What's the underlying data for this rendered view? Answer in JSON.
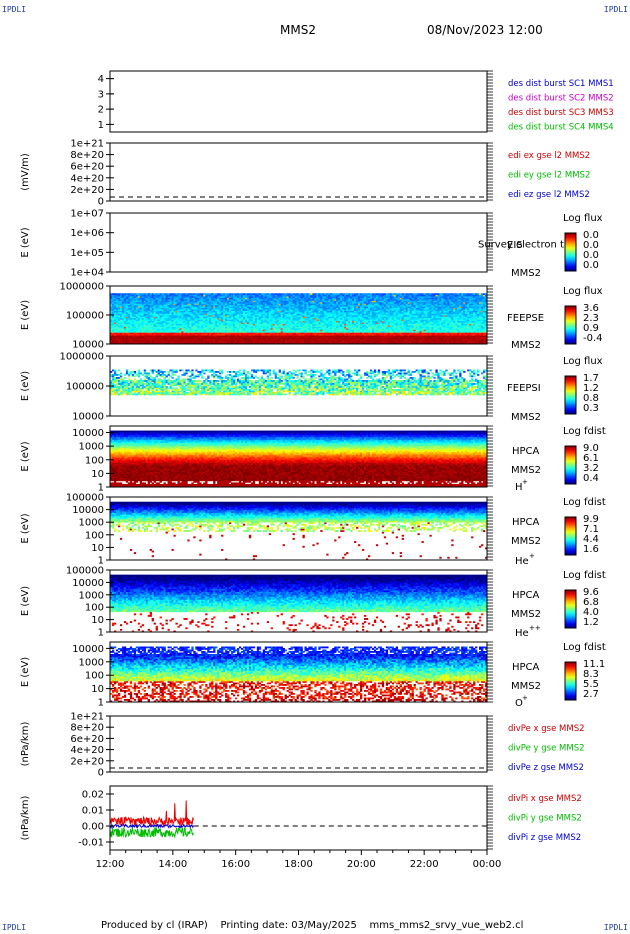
{
  "corner_tl": "IPDLI",
  "corner_tr": "IPDLI",
  "corner_bl": "IPDLI",
  "corner_br": "IPDLI",
  "header": {
    "spacecraft": "MMS2",
    "date": "08/Nov/2023 12:00"
  },
  "footer": "Produced by cl (IRAP)    Printing date: 03/May/2025    mms_mms2_srvy_vue_web2.cl",
  "chart_data": [
    {
      "type": "line",
      "panel": "burst",
      "yticks": [
        "1",
        "2",
        "3",
        "4"
      ],
      "ylim": [
        0.5,
        4.5
      ],
      "legend": [
        {
          "label": "des dist burst SC1 MMS1",
          "color": "#0000cc"
        },
        {
          "label": "des dist burst SC2 MMS2",
          "color": "#cc00cc"
        },
        {
          "label": "des dist burst SC3 MMS3",
          "color": "#cc0000"
        },
        {
          "label": "des dist burst SC4 MMS4",
          "color": "#00bb00"
        }
      ]
    },
    {
      "type": "line",
      "panel": "edi",
      "ylabel": "(mV/m)",
      "yticks": [
        "0",
        "2e+20",
        "4e+20",
        "6e+20",
        "8e+20",
        "1e+21"
      ],
      "ylim": [
        0,
        1e+21
      ],
      "legend": [
        {
          "label": "edi ex gse l2 MMS2",
          "color": "#cc0000"
        },
        {
          "label": "edi ey gse l2 MMS2",
          "color": "#00bb00"
        },
        {
          "label": "edi ez gse l2 MMS2",
          "color": "#0000cc"
        }
      ]
    },
    {
      "type": "heatmap",
      "panel": "eis",
      "ylabel": "E (eV)",
      "yticks": [
        "1e+04",
        "1e+05",
        "1e+06",
        "1e+07"
      ],
      "ylim": [
        10000.0,
        10000000.0
      ],
      "yscale": "log",
      "inst": [
        "EIS",
        "MMS2"
      ],
      "overlay": "Survey electron to",
      "cb_title": "Log flux",
      "cb_ticks": [
        "0.0",
        "0.0",
        "0.0",
        "0.0"
      ]
    },
    {
      "type": "heatmap",
      "panel": "feepse",
      "ylabel": "E (eV)",
      "yticks": [
        "10000",
        "100000",
        "1000000"
      ],
      "ylim": [
        10000,
        1000000
      ],
      "yscale": "log",
      "inst": [
        "FEEPSE",
        "MMS2"
      ],
      "cb_title": "Log flux",
      "cb_ticks": [
        "3.6",
        "2.3",
        "0.9",
        "-0.4"
      ]
    },
    {
      "type": "heatmap",
      "panel": "feepsi",
      "ylabel": "E (eV)",
      "yticks": [
        "10000",
        "100000",
        "1000000"
      ],
      "ylim": [
        10000,
        1000000
      ],
      "yscale": "log",
      "inst": [
        "FEEPSI",
        "MMS2"
      ],
      "cb_title": "Log flux",
      "cb_ticks": [
        "1.7",
        "1.2",
        "0.8",
        "0.3"
      ]
    },
    {
      "type": "heatmap",
      "panel": "hpca_h",
      "ylabel": "E (eV)",
      "yticks": [
        "1",
        "10",
        "100",
        "1000",
        "10000"
      ],
      "ylim": [
        1,
        30000
      ],
      "yscale": "log",
      "inst": [
        "HPCA",
        "MMS2"
      ],
      "species": "H",
      "charge": "+",
      "cb_title": "Log fdist",
      "cb_ticks": [
        "9.0",
        "6.1",
        "3.2",
        "0.4"
      ]
    },
    {
      "type": "heatmap",
      "panel": "hpca_he",
      "ylabel": "E (eV)",
      "yticks": [
        "1",
        "10",
        "100",
        "1000",
        "10000",
        "100000"
      ],
      "ylim": [
        1,
        100000
      ],
      "yscale": "log",
      "inst": [
        "HPCA",
        "MMS2"
      ],
      "species": "He",
      "charge": "+",
      "cb_title": "Log fdist",
      "cb_ticks": [
        "9.9",
        "7.1",
        "4.4",
        "1.6"
      ]
    },
    {
      "type": "heatmap",
      "panel": "hpca_hepp",
      "ylabel": "E (eV)",
      "yticks": [
        "1",
        "10",
        "100",
        "1000",
        "10000",
        "100000"
      ],
      "ylim": [
        1,
        100000
      ],
      "yscale": "log",
      "inst": [
        "HPCA",
        "MMS2"
      ],
      "species": "He",
      "charge": "++",
      "cb_title": "Log fdist",
      "cb_ticks": [
        "9.6",
        "6.8",
        "4.0",
        "1.2"
      ]
    },
    {
      "type": "heatmap",
      "panel": "hpca_o",
      "ylabel": "E (eV)",
      "yticks": [
        "1",
        "10",
        "100",
        "1000",
        "10000"
      ],
      "ylim": [
        1,
        30000
      ],
      "yscale": "log",
      "inst": [
        "HPCA",
        "MMS2"
      ],
      "species": "O",
      "charge": "+",
      "cb_title": "Log fdist",
      "cb_ticks": [
        "11.1",
        "8.3",
        "5.5",
        "2.7"
      ]
    },
    {
      "type": "line",
      "panel": "divpe",
      "ylabel": "(nPa/km)",
      "yticks": [
        "0",
        "2e+20",
        "4e+20",
        "6e+20",
        "8e+20",
        "1e+21"
      ],
      "ylim": [
        0,
        1e+21
      ],
      "legend": [
        {
          "label": "divPe x gse MMS2",
          "color": "#cc0000"
        },
        {
          "label": "divPe y gse MMS2",
          "color": "#00bb00"
        },
        {
          "label": "divPe z gse MMS2",
          "color": "#0000cc"
        }
      ]
    },
    {
      "type": "line",
      "panel": "divpi",
      "ylabel": "(nPa/km)",
      "yticks": [
        "-0.01",
        "0.00",
        "0.01",
        "0.02"
      ],
      "ylim": [
        -0.015,
        0.025
      ],
      "x_end": "14:40",
      "legend": [
        {
          "label": "divPi x gse MMS2",
          "color": "#cc0000"
        },
        {
          "label": "divPi y gse MMS2",
          "color": "#00bb00"
        },
        {
          "label": "divPi z gse MMS2",
          "color": "#0000cc"
        }
      ]
    }
  ],
  "xaxis": {
    "ticks": [
      "12:00",
      "14:00",
      "16:00",
      "18:00",
      "20:00",
      "22:00",
      "00:00"
    ]
  }
}
